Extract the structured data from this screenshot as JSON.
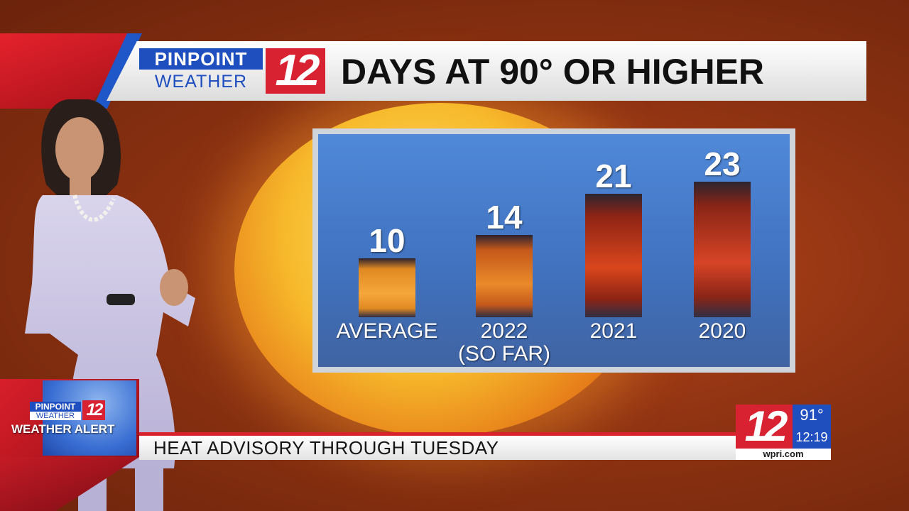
{
  "header": {
    "logo_top": "PINPOINT",
    "logo_bottom": "WEATHER",
    "logo_number": "12",
    "title": "DAYS AT 90° OR HIGHER"
  },
  "chart_data": {
    "type": "bar",
    "title": "DAYS AT 90° OR HIGHER",
    "categories": [
      "AVERAGE",
      "2022 (SO FAR)",
      "2021",
      "2020"
    ],
    "category_lines": [
      [
        "AVERAGE"
      ],
      [
        "2022",
        "(SO FAR)"
      ],
      [
        "2021"
      ],
      [
        "2020"
      ]
    ],
    "values": [
      10,
      14,
      21,
      23
    ],
    "value_labels": [
      "10",
      "14",
      "21",
      "23"
    ],
    "ylim": [
      0,
      25
    ],
    "grid": false,
    "colors": [
      [
        "#f5a73a",
        "#e08a22"
      ],
      [
        "#ea8a2a",
        "#c4581a"
      ],
      [
        "#d9461c",
        "#8e2414"
      ],
      [
        "#d74426",
        "#8a2516"
      ]
    ]
  },
  "alert": {
    "logo_top": "PINPOINT",
    "logo_bottom": "WEATHER",
    "logo_number": "12",
    "label": "WEATHER ALERT"
  },
  "ticker": {
    "text": "HEAT ADVISORY THROUGH TUESDAY"
  },
  "station": {
    "number": "12",
    "temperature": "91°",
    "time": "12:19",
    "url": "wpri.com"
  },
  "colors": {
    "brand_red": "#d92231",
    "brand_blue": "#1f4fbf",
    "panel_blue": "#4a86d8"
  }
}
